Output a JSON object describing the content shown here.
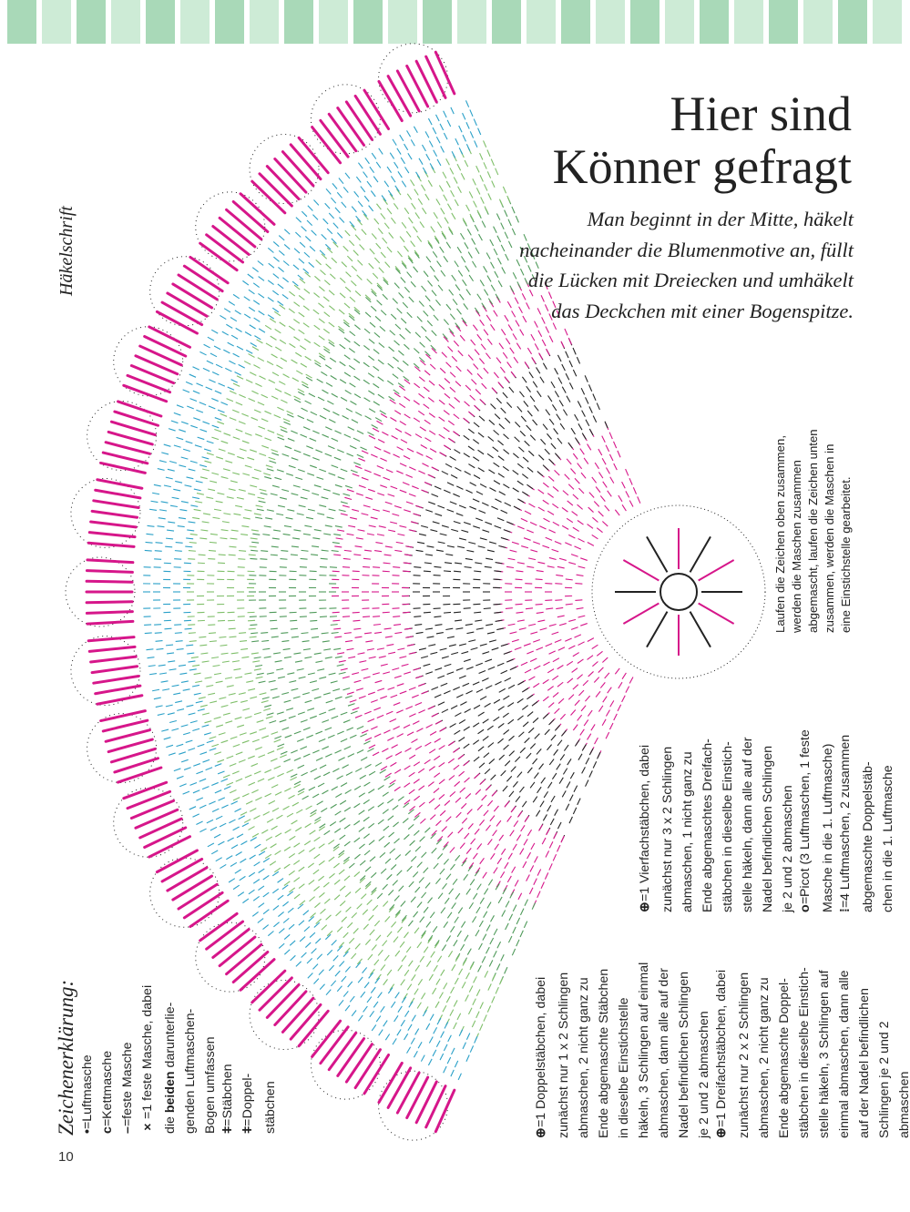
{
  "colors": {
    "stripe": "#a9d9b8",
    "stripe_light": "#cdebd6",
    "pink": "#d6168a",
    "green": "#4f9a5a",
    "lightgreen": "#7fbf6a",
    "teal": "#2aa0c8",
    "black": "#222222"
  },
  "title": {
    "line1": "Hier sind",
    "line2": "Könner gefragt"
  },
  "intro": "Man beginnt in der Mitte, häkelt nacheinander die Blumenmotive an, füllt die Lücken mit Dreiecken und umhäkelt das Deckchen mit einer Bogenspitze.",
  "diagram_label": "Häkelschrift",
  "note": [
    "Laufen die Zeichen oben zusammen,",
    "werden die Maschen zusammen",
    "abgemascht, laufen die Zeichen unten",
    "zusammen, werden die Maschen in",
    "eine Einstichstelle gearbeitet."
  ],
  "legend": {
    "title": "Zeichenerklärung:",
    "eq": "=",
    "items": [
      {
        "icon": "dot",
        "symbol": "•",
        "lines": [
          "Luftmasche"
        ]
      },
      {
        "icon": "slip-stitch",
        "symbol": "c",
        "lines": [
          "Kettmasche"
        ]
      },
      {
        "icon": "dash",
        "symbol": "–",
        "lines": [
          "feste Masche"
        ]
      },
      {
        "icon": "cross",
        "symbol": "×",
        "lines": [
          "1 feste Masche, dabei"
        ],
        "line2_pre": "die ",
        "line2_bold": "beiden",
        "line2_post": " darunterlie-",
        "more": [
          "genden Luftmaschen-",
          "Bogen umfassen"
        ]
      },
      {
        "icon": "double-crochet",
        "symbol": "ǂ",
        "lines": [
          "Stäbchen"
        ]
      },
      {
        "icon": "treble-crochet",
        "symbol": "ǂ",
        "lines": [
          "Doppel-",
          "stäbchen"
        ]
      }
    ],
    "items2": [
      {
        "icon": "dc-cluster",
        "symbol": "⊕",
        "lines": [
          "1 Doppelstäbchen, dabei",
          "zunächst nur 1 x 2 Schlingen",
          "abmaschen, 2 nicht ganz zu",
          "Ende abgemaschte Stäbchen",
          "in dieselbe Einstichstelle",
          "häkeln, 3 Schlingen auf einmal",
          "abmaschen, dann alle auf der",
          "Nadel befindlichen Schlingen",
          "je 2 und 2 abmaschen"
        ]
      },
      {
        "icon": "tr-cluster",
        "symbol": "⊕",
        "lines": [
          "1 Dreifachstäbchen, dabei",
          "zunächst nur 2 x 2 Schlingen",
          "abmaschen, 2 nicht ganz zu",
          "Ende abgemaschte Doppel-",
          "stäbchen in dieselbe Einstich-",
          "stelle häkeln, 3 Schlingen auf",
          "einmal abmaschen, dann alle",
          "auf der Nadel befindlichen",
          "Schlingen je 2 und 2",
          "abmaschen"
        ]
      }
    ],
    "items3": [
      {
        "icon": "dtr-cluster",
        "symbol": "⊕",
        "lines": [
          "1 Vierfachstäbchen, dabei",
          "zunächst nur 3 x 2 Schlingen",
          "abmaschen, 1 nicht ganz zu",
          "Ende abgemaschtes Dreifach-",
          "stäbchen in dieselbe Einstich-",
          "stelle häkeln, dann alle auf der",
          "Nadel befindlichen Schlingen",
          "je 2 und 2 abmaschen"
        ]
      },
      {
        "icon": "picot",
        "symbol": "o",
        "lines": [
          "Picot (3 Luftmaschen, 1 feste",
          "Masche in die 1. Luftmasche)"
        ]
      },
      {
        "icon": "chain-cluster",
        "symbol": "⁞",
        "lines": [
          "4 Luftmaschen, 2 zusammen",
          "abgemaschte Doppelstäb-",
          "chen in die 1. Luftmasche"
        ]
      }
    ]
  },
  "page_number": "10"
}
